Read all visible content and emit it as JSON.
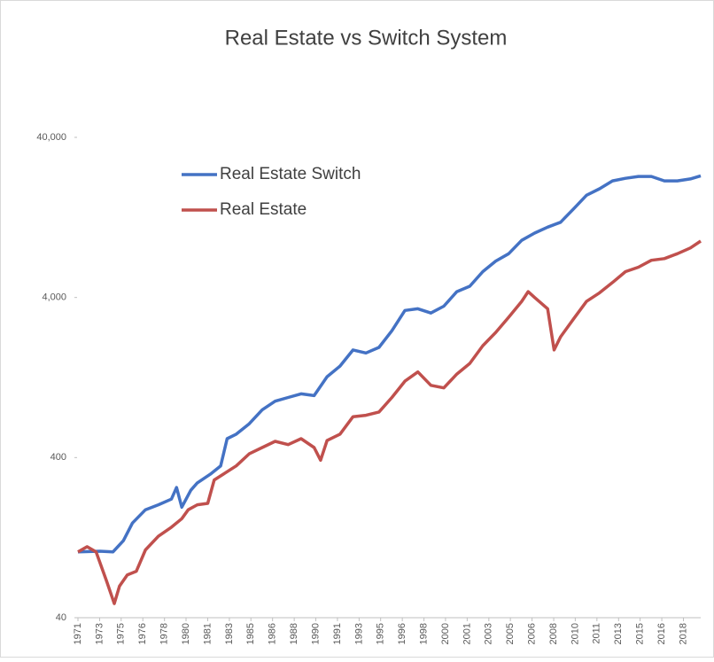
{
  "chart_data": {
    "type": "line",
    "title": "Real Estate vs Switch System",
    "log_scale": true,
    "grid": false,
    "legend": "upper left",
    "xlim": [
      1971.8,
      2019.8
    ],
    "xticks": [
      {
        "value": 1971.8,
        "label": "1971"
      },
      {
        "value": 1973.47,
        "label": "1973"
      },
      {
        "value": 1975.13,
        "label": "1975"
      },
      {
        "value": 1976.8,
        "label": "1976"
      },
      {
        "value": 1978.47,
        "label": "1978"
      },
      {
        "value": 1980.13,
        "label": "1980"
      },
      {
        "value": 1981.8,
        "label": "1981"
      },
      {
        "value": 1983.47,
        "label": "1983"
      },
      {
        "value": 1985.13,
        "label": "1985"
      },
      {
        "value": 1986.8,
        "label": "1986"
      },
      {
        "value": 1988.47,
        "label": "1988"
      },
      {
        "value": 1990.13,
        "label": "1990"
      },
      {
        "value": 1991.8,
        "label": "1991"
      },
      {
        "value": 1993.47,
        "label": "1993"
      },
      {
        "value": 1995.13,
        "label": "1995"
      },
      {
        "value": 1996.8,
        "label": "1996"
      },
      {
        "value": 1998.47,
        "label": "1998"
      },
      {
        "value": 2000.13,
        "label": "2000"
      },
      {
        "value": 2001.8,
        "label": "2001"
      },
      {
        "value": 2003.47,
        "label": "2003"
      },
      {
        "value": 2005.13,
        "label": "2005"
      },
      {
        "value": 2006.8,
        "label": "2006"
      },
      {
        "value": 2008.47,
        "label": "2008"
      },
      {
        "value": 2010.13,
        "label": "2010"
      },
      {
        "value": 2011.8,
        "label": "2011"
      },
      {
        "value": 2013.47,
        "label": "2013"
      },
      {
        "value": 2015.13,
        "label": "2015"
      },
      {
        "value": 2016.8,
        "label": "2016"
      },
      {
        "value": 2018.47,
        "label": "2018"
      }
    ],
    "ylim": [
      40,
      40000
    ],
    "yticks": [
      40,
      400,
      {
        "value": 4000,
        "label": "4,000"
      },
      {
        "value": 40000,
        "label": "40,000"
      }
    ],
    "series": [
      {
        "name": "Real Estate Switch",
        "color": "#4472c4",
        "x": [
          1971.8,
          1973.5,
          1974.5,
          1975.3,
          1976,
          1977,
          1978,
          1979,
          1979.4,
          1979.8,
          1980.5,
          1981,
          1982,
          1982.8,
          1983.3,
          1984,
          1985,
          1986,
          1987,
          1988,
          1989,
          1990,
          1991,
          1992,
          1993,
          1994,
          1995,
          1996,
          1997,
          1998,
          1999,
          2000,
          2001,
          2002,
          2003,
          2004,
          2005,
          2006,
          2007,
          2008,
          2009,
          2010,
          2011,
          2012,
          2013,
          2014,
          2015,
          2016,
          2017,
          2018,
          2019,
          2019.8
        ],
        "values": [
          103,
          104,
          103,
          121,
          156,
          189,
          203,
          220,
          260,
          196,
          250,
          278,
          315,
          355,
          525,
          560,
          650,
          795,
          900,
          950,
          1000,
          975,
          1280,
          1490,
          1880,
          1800,
          1950,
          2480,
          3320,
          3400,
          3200,
          3530,
          4350,
          4700,
          5800,
          6750,
          7500,
          9100,
          10100,
          11000,
          11800,
          14300,
          17400,
          19100,
          21400,
          22200,
          22800,
          22800,
          21400,
          21400,
          22000,
          23000
        ]
      },
      {
        "name": "Real Estate",
        "color": "#c0504d",
        "x": [
          1971.8,
          1972.5,
          1973.2,
          1974,
          1974.6,
          1975,
          1975.6,
          1976.3,
          1977,
          1978,
          1979,
          1979.8,
          1980.3,
          1981,
          1981.8,
          1982.3,
          1983,
          1984,
          1985,
          1986,
          1987,
          1988,
          1989,
          1990,
          1990.5,
          1991,
          1992,
          1993,
          1994,
          1995,
          1996,
          1997,
          1998,
          1999,
          2000,
          2001,
          2002,
          2003,
          2004,
          2005,
          2006,
          2006.5,
          2007,
          2008,
          2008.5,
          2009,
          2010,
          2011,
          2012,
          2013,
          2014,
          2015,
          2016,
          2017,
          2018,
          2019,
          2019.8
        ],
        "values": [
          103,
          111,
          103,
          68,
          49,
          63,
          74,
          78,
          106,
          129,
          147,
          166,
          189,
          203,
          207,
          290,
          315,
          355,
          422,
          462,
          505,
          482,
          525,
          462,
          385,
          511,
          560,
          720,
          735,
          770,
          950,
          1200,
          1370,
          1130,
          1090,
          1330,
          1550,
          2000,
          2420,
          3010,
          3780,
          4350,
          4000,
          3400,
          1880,
          2270,
          2940,
          3780,
          4280,
          4960,
          5800,
          6180,
          6830,
          7000,
          7500,
          8150,
          9000
        ]
      }
    ]
  }
}
